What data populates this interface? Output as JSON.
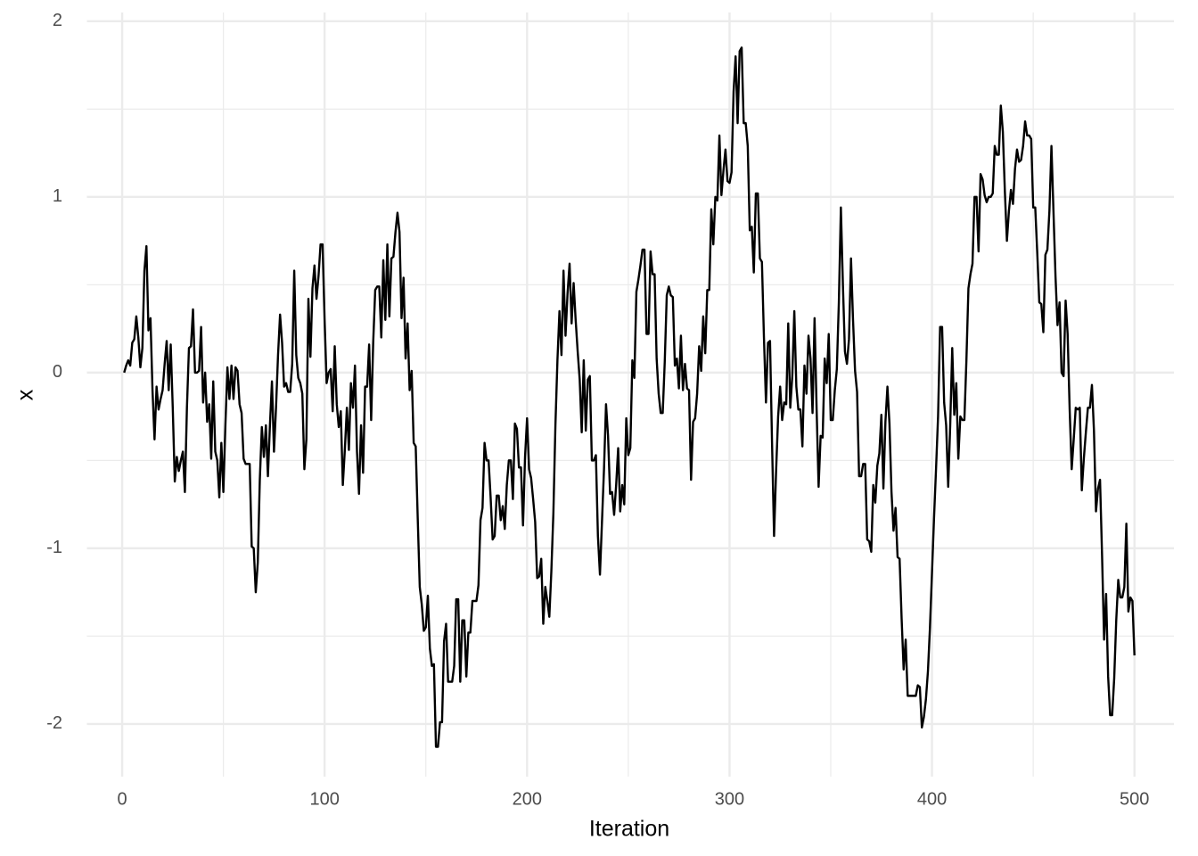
{
  "chart_data": {
    "type": "line",
    "x_label": "Iteration",
    "y_label": "x",
    "color": "#000000",
    "xlim": [
      -17.4,
      519.5
    ],
    "ylim": [
      -2.3,
      2.05
    ],
    "xticks": [
      0,
      100,
      200,
      300,
      400,
      500
    ],
    "yticks": [
      -2,
      -1,
      0,
      1,
      2
    ],
    "minor_xticks": [
      50,
      150,
      250,
      350,
      450
    ],
    "minor_yticks": [
      -1.5,
      -0.5,
      0.5,
      1.5
    ],
    "grid": true,
    "x": [
      1,
      2,
      3,
      4,
      5,
      6,
      7,
      8,
      9,
      10,
      11,
      12,
      13,
      14,
      15,
      16,
      17,
      18,
      19,
      20,
      21,
      22,
      23,
      24,
      25,
      26,
      27,
      28,
      29,
      30,
      31,
      32,
      33,
      34,
      35,
      36,
      37,
      38,
      39,
      40,
      41,
      42,
      43,
      44,
      45,
      46,
      47,
      48,
      49,
      50,
      51,
      52,
      53,
      54,
      55,
      56,
      57,
      58,
      59,
      60,
      61,
      62,
      63,
      64,
      65,
      66,
      67,
      68,
      69,
      70,
      71,
      72,
      73,
      74,
      75,
      76,
      77,
      78,
      79,
      80,
      81,
      82,
      83,
      84,
      85,
      86,
      87,
      88,
      89,
      90,
      91,
      92,
      93,
      94,
      95,
      96,
      97,
      98,
      99,
      100,
      101,
      102,
      103,
      104,
      105,
      106,
      107,
      108,
      109,
      110,
      111,
      112,
      113,
      114,
      115,
      116,
      117,
      118,
      119,
      120,
      121,
      122,
      123,
      124,
      125,
      126,
      127,
      128,
      129,
      130,
      131,
      132,
      133,
      134,
      135,
      136,
      137,
      138,
      139,
      140,
      141,
      142,
      143,
      144,
      145,
      146,
      147,
      148,
      149,
      150,
      151,
      152,
      153,
      154,
      155,
      156,
      157,
      158,
      159,
      160,
      161,
      162,
      163,
      164,
      165,
      166,
      167,
      168,
      169,
      170,
      171,
      172,
      173,
      174,
      175,
      176,
      177,
      178,
      179,
      180,
      181,
      182,
      183,
      184,
      185,
      186,
      187,
      188,
      189,
      190,
      191,
      192,
      193,
      194,
      195,
      196,
      197,
      198,
      199,
      200,
      201,
      202,
      203,
      204,
      205,
      206,
      207,
      208,
      209,
      210,
      211,
      212,
      213,
      214,
      215,
      216,
      217,
      218,
      219,
      220,
      221,
      222,
      223,
      224,
      225,
      226,
      227,
      228,
      229,
      230,
      231,
      232,
      233,
      234,
      235,
      236,
      237,
      238,
      239,
      240,
      241,
      242,
      243,
      244,
      245,
      246,
      247,
      248,
      249,
      250,
      251,
      252,
      253,
      254,
      255,
      256,
      257,
      258,
      259,
      260,
      261,
      262,
      263,
      264,
      265,
      266,
      267,
      268,
      269,
      270,
      271,
      272,
      273,
      274,
      275,
      276,
      277,
      278,
      279,
      280,
      281,
      282,
      283,
      284,
      285,
      286,
      287,
      288,
      289,
      290,
      291,
      292,
      293,
      294,
      295,
      296,
      297,
      298,
      299,
      300,
      301,
      302,
      303,
      304,
      305,
      306,
      307,
      308,
      309,
      310,
      311,
      312,
      313,
      314,
      315,
      316,
      317,
      318,
      319,
      320,
      321,
      322,
      323,
      324,
      325,
      326,
      327,
      328,
      329,
      330,
      331,
      332,
      333,
      334,
      335,
      336,
      337,
      338,
      339,
      340,
      341,
      342,
      343,
      344,
      345,
      346,
      347,
      348,
      349,
      350,
      351,
      352,
      353,
      354,
      355,
      356,
      357,
      358,
      359,
      360,
      361,
      362,
      363,
      364,
      365,
      366,
      367,
      368,
      369,
      370,
      371,
      372,
      373,
      374,
      375,
      376,
      377,
      378,
      379,
      380,
      381,
      382,
      383,
      384,
      385,
      386,
      387,
      388,
      389,
      390,
      391,
      392,
      393,
      394,
      395,
      396,
      397,
      398,
      399,
      400,
      401,
      402,
      403,
      404,
      405,
      406,
      407,
      408,
      409,
      410,
      411,
      412,
      413,
      414,
      415,
      416,
      417,
      418,
      419,
      420,
      421,
      422,
      423,
      424,
      425,
      426,
      427,
      428,
      429,
      430,
      431,
      432,
      433,
      434,
      435,
      436,
      437,
      438,
      439,
      440,
      441,
      442,
      443,
      444,
      445,
      446,
      447,
      448,
      449,
      450,
      451,
      452,
      453,
      454,
      455,
      456,
      457,
      458,
      459,
      460,
      461,
      462,
      463,
      464,
      465,
      466,
      467,
      468,
      469,
      470,
      471,
      472,
      473,
      474,
      475,
      476,
      477,
      478,
      479,
      480,
      481,
      482,
      483,
      484,
      485,
      486,
      487,
      488,
      489,
      490,
      491,
      492,
      493,
      494,
      495,
      496,
      497,
      498,
      499,
      500
    ],
    "values": [
      0,
      0.04,
      0.07,
      0.04,
      0.17,
      0.19,
      0.32,
      0.2,
      0.03,
      0.14,
      0.58,
      0.72,
      0.24,
      0.31,
      -0.1,
      -0.38,
      -0.08,
      -0.21,
      -0.15,
      -0.1,
      0.05,
      0.18,
      -0.1,
      0.16,
      -0.2,
      -0.62,
      -0.48,
      -0.56,
      -0.5,
      -0.45,
      -0.68,
      -0.2,
      0.14,
      0.15,
      0.36,
      0,
      0,
      0.01,
      0.26,
      -0.17,
      0,
      -0.28,
      -0.18,
      -0.49,
      -0.05,
      -0.45,
      -0.5,
      -0.71,
      -0.4,
      -0.68,
      -0.3,
      0.03,
      -0.15,
      0.04,
      -0.15,
      0.03,
      0.01,
      -0.18,
      -0.23,
      -0.49,
      -0.52,
      -0.52,
      -0.52,
      -0.99,
      -1,
      -1.25,
      -1.08,
      -0.61,
      -0.31,
      -0.48,
      -0.3,
      -0.59,
      -0.3,
      -0.05,
      -0.45,
      -0.2,
      0.1,
      0.33,
      0.17,
      -0.08,
      -0.06,
      -0.11,
      -0.11,
      0.05,
      0.58,
      0.1,
      -0.03,
      -0.06,
      -0.12,
      -0.55,
      -0.38,
      0.42,
      0.09,
      0.48,
      0.61,
      0.42,
      0.55,
      0.73,
      0.73,
      0.3,
      -0.06,
      0,
      0.02,
      -0.22,
      0.15,
      -0.18,
      -0.31,
      -0.22,
      -0.64,
      -0.44,
      -0.2,
      -0.44,
      -0.06,
      -0.2,
      0.04,
      -0.45,
      -0.69,
      -0.3,
      -0.57,
      -0.08,
      -0.08,
      0.16,
      -0.27,
      0.17,
      0.47,
      0.49,
      0.49,
      0.2,
      0.64,
      0.3,
      0.73,
      0.32,
      0.65,
      0.66,
      0.8,
      0.91,
      0.8,
      0.31,
      0.54,
      0.08,
      0.28,
      -0.1,
      0.01,
      -0.4,
      -0.42,
      -0.83,
      -1.22,
      -1.32,
      -1.47,
      -1.45,
      -1.27,
      -1.57,
      -1.67,
      -1.66,
      -2.13,
      -2.13,
      -1.99,
      -1.99,
      -1.53,
      -1.43,
      -1.76,
      -1.76,
      -1.76,
      -1.67,
      -1.29,
      -1.29,
      -1.76,
      -1.41,
      -1.41,
      -1.73,
      -1.48,
      -1.48,
      -1.3,
      -1.3,
      -1.3,
      -1.21,
      -0.84,
      -0.77,
      -0.4,
      -0.5,
      -0.5,
      -0.71,
      -0.95,
      -0.93,
      -0.7,
      -0.7,
      -0.84,
      -0.76,
      -0.89,
      -0.64,
      -0.5,
      -0.5,
      -0.72,
      -0.29,
      -0.32,
      -0.54,
      -0.54,
      -0.87,
      -0.48,
      -0.26,
      -0.55,
      -0.6,
      -0.72,
      -0.85,
      -1.17,
      -1.16,
      -1.06,
      -1.43,
      -1.22,
      -1.3,
      -1.39,
      -1.13,
      -0.8,
      -0.3,
      0.07,
      0.35,
      0.1,
      0.58,
      0.21,
      0.45,
      0.62,
      0.28,
      0.51,
      0.3,
      0.12,
      -0.04,
      -0.34,
      0.07,
      -0.33,
      -0.04,
      -0.02,
      -0.5,
      -0.5,
      -0.47,
      -0.93,
      -1.15,
      -0.85,
      -0.55,
      -0.18,
      -0.36,
      -0.69,
      -0.68,
      -0.81,
      -0.64,
      -0.43,
      -0.79,
      -0.64,
      -0.75,
      -0.26,
      -0.47,
      -0.43,
      0.07,
      -0.03,
      0.46,
      0.53,
      0.61,
      0.7,
      0.7,
      0.22,
      0.22,
      0.69,
      0.56,
      0.56,
      0.08,
      -0.12,
      -0.23,
      -0.23,
      0.06,
      0.44,
      0.49,
      0.44,
      0.43,
      0.04,
      0.08,
      -0.09,
      0.21,
      -0.1,
      0.05,
      -0.09,
      -0.1,
      -0.61,
      -0.28,
      -0.26,
      -0.12,
      0.15,
      0.01,
      0.32,
      0.11,
      0.47,
      0.47,
      0.93,
      0.73,
      1,
      0.98,
      1.35,
      1.01,
      1.15,
      1.27,
      1.09,
      1.08,
      1.14,
      1.6,
      1.8,
      1.42,
      1.83,
      1.85,
      1.42,
      1.42,
      1.29,
      0.81,
      0.83,
      0.57,
      1.02,
      1.02,
      0.65,
      0.63,
      0.2,
      -0.17,
      0.17,
      0.18,
      -0.4,
      -0.93,
      -0.56,
      -0.25,
      -0.08,
      -0.27,
      -0.17,
      -0.18,
      0.28,
      -0.2,
      -0.02,
      0.35,
      -0.08,
      -0.21,
      -0.21,
      -0.42,
      0.04,
      -0.12,
      0.21,
      0.08,
      -0.23,
      0.31,
      -0.2,
      -0.65,
      -0.36,
      -0.37,
      0.08,
      -0.06,
      0.22,
      -0.27,
      -0.27,
      -0.1,
      0.02,
      0.4,
      0.94,
      0.5,
      0.12,
      0.05,
      0.19,
      0.65,
      0.3,
      0.01,
      -0.11,
      -0.59,
      -0.59,
      -0.52,
      -0.52,
      -0.95,
      -0.96,
      -1.02,
      -0.64,
      -0.74,
      -0.53,
      -0.46,
      -0.24,
      -0.66,
      -0.28,
      -0.08,
      -0.29,
      -0.68,
      -0.9,
      -0.77,
      -1.05,
      -1.06,
      -1.4,
      -1.69,
      -1.52,
      -1.84,
      -1.84,
      -1.84,
      -1.84,
      -1.84,
      -1.78,
      -1.79,
      -2.02,
      -1.96,
      -1.86,
      -1.7,
      -1.45,
      -1.14,
      -0.83,
      -0.55,
      -0.25,
      0.26,
      0.26,
      -0.17,
      -0.3,
      -0.65,
      -0.3,
      0.14,
      -0.24,
      -0.06,
      -0.49,
      -0.25,
      -0.27,
      -0.27,
      0.07,
      0.48,
      0.56,
      0.62,
      1,
      1,
      0.69,
      1.13,
      1.1,
      1.01,
      0.97,
      1,
      1,
      1.02,
      1.29,
      1.24,
      1.24,
      1.52,
      1.37,
      1.03,
      0.75,
      0.92,
      1.04,
      0.96,
      1.16,
      1.27,
      1.2,
      1.21,
      1.29,
      1.43,
      1.35,
      1.35,
      1.33,
      0.94,
      0.94,
      0.68,
      0.4,
      0.39,
      0.23,
      0.67,
      0.7,
      0.92,
      1.29,
      0.92,
      0.55,
      0.27,
      0.4,
      0,
      -0.02,
      0.41,
      0.22,
      -0.21,
      -0.55,
      -0.38,
      -0.2,
      -0.21,
      -0.2,
      -0.67,
      -0.49,
      -0.34,
      -0.2,
      -0.2,
      -0.07,
      -0.33,
      -0.79,
      -0.66,
      -0.61,
      -1.04,
      -1.52,
      -1.26,
      -1.73,
      -1.95,
      -1.95,
      -1.74,
      -1.41,
      -1.18,
      -1.28,
      -1.28,
      -1.22,
      -0.86,
      -1.36,
      -1.28,
      -1.3,
      -1.61
    ]
  }
}
